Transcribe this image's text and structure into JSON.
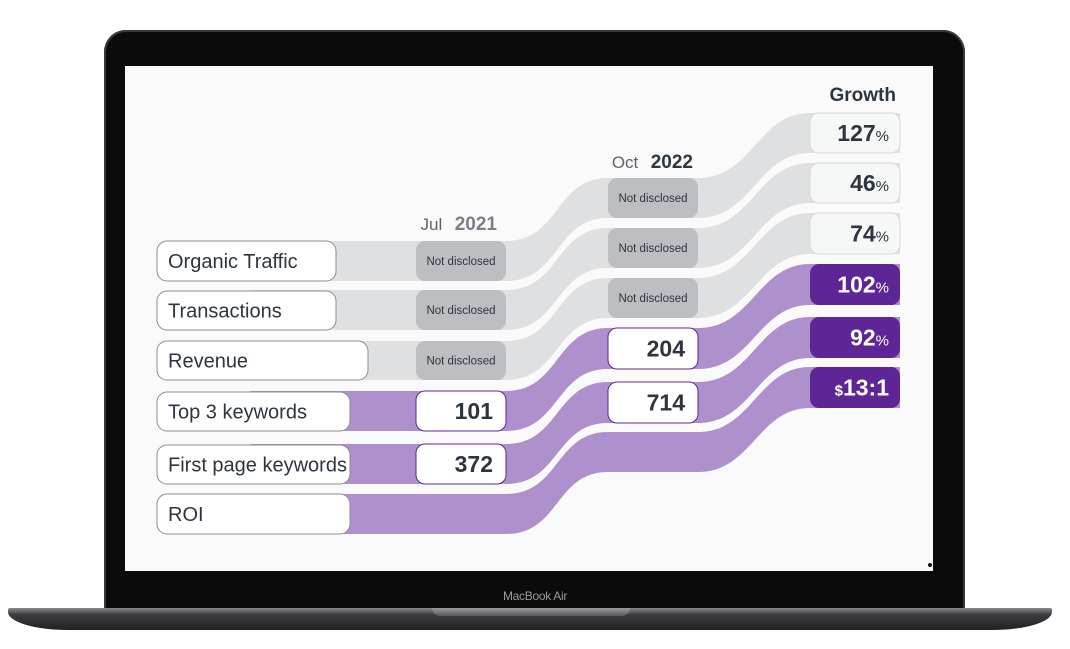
{
  "device": {
    "brand": "MacBook Air"
  },
  "headers": {
    "col1": {
      "month": "Jul",
      "year": "2021"
    },
    "col2": {
      "month": "Oct",
      "year": "2022"
    },
    "col3": {
      "title": "Growth"
    }
  },
  "colors": {
    "gray_band": "#dfe0e2",
    "gray_box": "#bcbec1",
    "purple_band": "#ae90cc",
    "purple_box": "#5e2596",
    "text": "#2d3540"
  },
  "rows": [
    {
      "label": "Organic Traffic",
      "jul": "Not disclosed",
      "oct": "Not disclosed",
      "growth": {
        "prefix": "",
        "value": "127",
        "unit": "%"
      },
      "highlight": false
    },
    {
      "label": "Transactions",
      "jul": "Not disclosed",
      "oct": "Not disclosed",
      "growth": {
        "prefix": "",
        "value": "46",
        "unit": "%"
      },
      "highlight": false
    },
    {
      "label": "Revenue",
      "jul": "Not disclosed",
      "oct": "Not disclosed",
      "growth": {
        "prefix": "",
        "value": "74",
        "unit": "%"
      },
      "highlight": false
    },
    {
      "label": "Top 3 keywords",
      "jul": "101",
      "oct": "204",
      "growth": {
        "prefix": "",
        "value": "102",
        "unit": "%"
      },
      "highlight": true
    },
    {
      "label": "First page keywords",
      "jul": "372",
      "oct": "714",
      "growth": {
        "prefix": "",
        "value": "92",
        "unit": "%"
      },
      "highlight": true
    },
    {
      "label": "ROI",
      "jul": "",
      "oct": "",
      "growth": {
        "prefix": "$",
        "value": "13:1",
        "unit": ""
      },
      "highlight": true
    }
  ]
}
